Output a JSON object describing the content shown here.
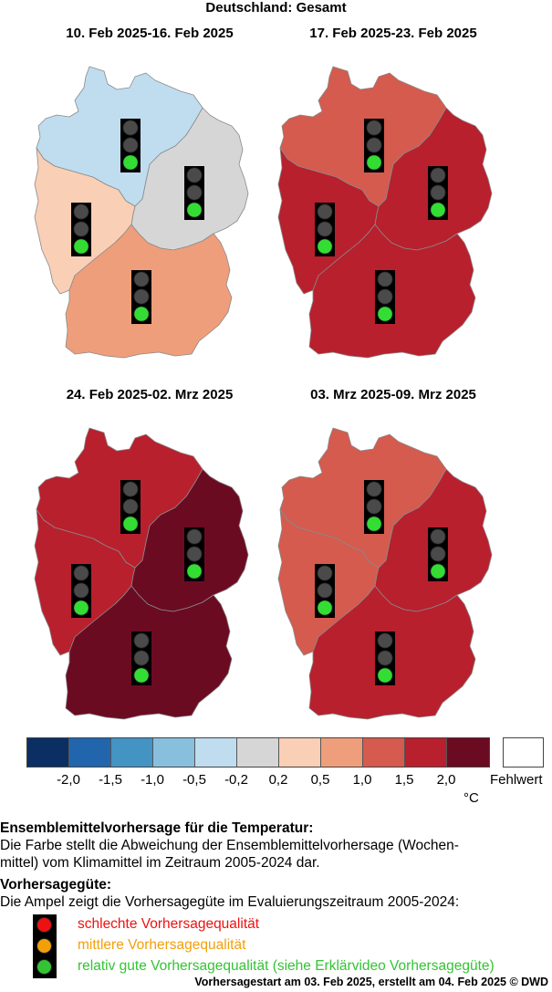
{
  "header": {
    "title": "Deutschland: Gesamt"
  },
  "panels": [
    {
      "label": "10. Feb 2025-16. Feb 2025",
      "regions": {
        "north": {
          "value_class": "-0,5 bis -0,2",
          "color": "#bfddef"
        },
        "east": {
          "value_class": "-0,2 bis 0,2",
          "color": "#d6d6d6"
        },
        "west": {
          "value_class": "0,2 bis 0,5",
          "color": "#f9cfb6"
        },
        "south": {
          "value_class": "0,5 bis 1,0",
          "color": "#ef9e7b"
        }
      },
      "quality": {
        "north": "green",
        "east": "green",
        "west": "green",
        "south": "green"
      }
    },
    {
      "label": "17. Feb 2025-23. Feb 2025",
      "regions": {
        "north": {
          "value_class": "1,0 bis 1,5",
          "color": "#d45b4e"
        },
        "east": {
          "value_class": "1,5 bis 2,0",
          "color": "#b8202d"
        },
        "west": {
          "value_class": "1,5 bis 2,0",
          "color": "#b8202d"
        },
        "south": {
          "value_class": "1,5 bis 2,0",
          "color": "#b8202d"
        }
      },
      "quality": {
        "north": "green",
        "east": "green",
        "west": "green",
        "south": "green"
      }
    },
    {
      "label": "24. Feb 2025-02. Mrz 2025",
      "regions": {
        "north": {
          "value_class": "1,5 bis 2,0",
          "color": "#b8202d"
        },
        "east": {
          "value_class": "> 2,0",
          "color": "#6b0b22"
        },
        "west": {
          "value_class": "1,5 bis 2,0",
          "color": "#b8202d"
        },
        "south": {
          "value_class": "> 2,0",
          "color": "#6b0b22"
        }
      },
      "quality": {
        "north": "green",
        "east": "green",
        "west": "green",
        "south": "green"
      }
    },
    {
      "label": "03. Mrz 2025-09. Mrz 2025",
      "regions": {
        "north": {
          "value_class": "1,0 bis 1,5",
          "color": "#d45b4e"
        },
        "east": {
          "value_class": "1,5 bis 2,0",
          "color": "#b8202d"
        },
        "west": {
          "value_class": "1,0 bis 1,5",
          "color": "#d45b4e"
        },
        "south": {
          "value_class": "1,5 bis 2,0",
          "color": "#b8202d"
        }
      },
      "quality": {
        "north": "green",
        "east": "green",
        "west": "green",
        "south": "green"
      }
    }
  ],
  "colorbar": {
    "colors": [
      "#0b2f63",
      "#2166ac",
      "#4393c3",
      "#88bfdd",
      "#bfddef",
      "#d6d6d6",
      "#f9cfb6",
      "#ef9e7b",
      "#d45b4e",
      "#b8202d",
      "#6b0b22"
    ],
    "ticks": [
      "-2,0",
      "-1,5",
      "-1,0",
      "-0,5",
      "-0,2",
      "0,2",
      "0,5",
      "1,0",
      "1,5",
      "2,0"
    ],
    "unit": "°C",
    "missing_label": "Fehlwert"
  },
  "description": {
    "heading": "Ensemblemittelvorhersage für die Temperatur:",
    "line1": "Die Farbe stellt die Abweichung der Ensemblemittelvorhersage (Wochen-",
    "line2": "mittel) vom Klimamittel im Zeitraum 2005-2024 dar.",
    "quality_heading": "Vorhersagegüte:",
    "quality_text": "Die Ampel zeigt die Vorhersagegüte im Evaluierungszeitraum 2005-2024:"
  },
  "quality_legend": [
    {
      "label": "schlechte Vorhersagequalität",
      "color": "#ee1111"
    },
    {
      "label": "mittlere Vorhersagequalität",
      "color": "#f2a007"
    },
    {
      "label": "relativ gute Vorhersagequalität (siehe Erklärvideo Vorhersagegüte)",
      "color": "#33c433"
    }
  ],
  "traffic_light_colors": {
    "off": "#4a4a4a",
    "green": "#33dd33",
    "red": "#ee1111",
    "orange": "#f2a007"
  },
  "footer": "Vorhersagestart am 03. Feb 2025, erstellt am 04. Feb 2025 © DWD"
}
